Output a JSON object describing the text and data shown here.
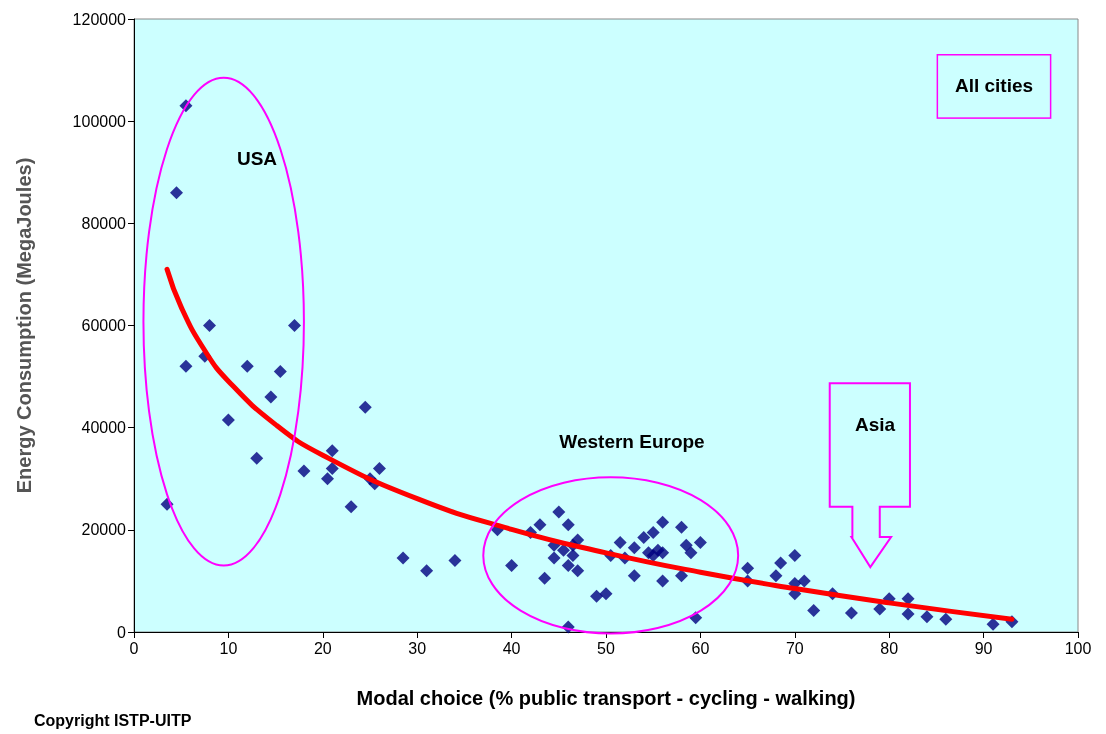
{
  "chart_data": {
    "type": "scatter",
    "xlabel": "Modal choice (% public transport - cycling - walking)",
    "ylabel": "Energy Consumption (MegaJoules)",
    "xlim": [
      0,
      100
    ],
    "xticks": [
      0,
      10,
      20,
      30,
      40,
      50,
      60,
      70,
      80,
      90,
      100
    ],
    "ylim": [
      0,
      120000
    ],
    "yticks": [
      0,
      20000,
      40000,
      60000,
      80000,
      100000,
      120000
    ],
    "grid": false,
    "marker": "diamond",
    "series": [
      {
        "color": "#000080",
        "x": [
          3.5,
          4.5,
          5.5,
          5.5,
          7.5,
          8,
          10,
          12,
          13,
          14.5,
          15.5,
          17,
          18,
          20.5,
          21,
          21,
          23,
          24.5,
          25,
          25.5,
          26,
          28.5,
          31,
          34,
          38.5,
          40,
          42,
          43,
          43.5,
          44.5,
          44.5,
          45,
          45.5,
          46,
          46,
          46.5,
          47,
          46.5,
          47,
          46,
          49,
          50,
          50.5,
          51.5,
          52,
          53,
          53,
          54,
          54.5,
          55,
          55,
          55.5,
          56,
          56,
          56,
          58,
          58.5,
          58,
          59,
          60,
          59.5,
          65,
          65,
          68,
          68.5,
          70,
          70,
          70,
          71,
          72,
          74,
          76,
          79,
          80,
          82,
          82,
          84,
          86,
          91,
          93
        ],
        "values": [
          25000,
          86000,
          103000,
          52000,
          54000,
          60000,
          41500,
          52000,
          34000,
          46000,
          51000,
          60000,
          31500,
          30000,
          32000,
          35500,
          24500,
          44000,
          30000,
          29000,
          32000,
          14500,
          12000,
          14000,
          20000,
          13000,
          19500,
          21000,
          10500,
          17000,
          14500,
          23500,
          16000,
          21000,
          13000,
          17000,
          18000,
          15000,
          12000,
          1000,
          7000,
          7500,
          15000,
          17500,
          14500,
          16500,
          11000,
          18500,
          15500,
          19500,
          15000,
          16000,
          21500,
          15500,
          10000,
          20500,
          17000,
          11000,
          15500,
          17500,
          2800,
          12500,
          10000,
          11000,
          13500,
          15000,
          9500,
          7500,
          10000,
          4200,
          7500,
          3700,
          4500,
          6500,
          6500,
          3500,
          3000,
          2500,
          1500,
          2000
        ]
      },
      {
        "type": "line",
        "color": "#ff0000",
        "marker": "none",
        "x": [
          3.5,
          5,
          7.5,
          10,
          15,
          20,
          30,
          40,
          50,
          60,
          70,
          80,
          93
        ],
        "values": [
          71000,
          63600,
          55100,
          49100,
          40600,
          34600,
          26100,
          20100,
          15500,
          11700,
          8500,
          5700,
          2500
        ]
      }
    ],
    "annotations": [
      "USA",
      "Western Europe",
      "Asia",
      "All cities",
      "Copyright ISTP-UITP"
    ]
  }
}
